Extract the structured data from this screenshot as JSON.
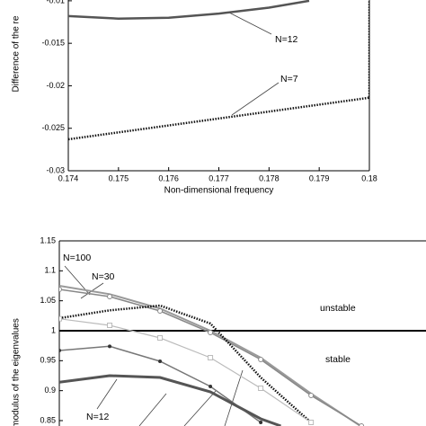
{
  "chart_data": [
    {
      "type": "line",
      "y_label": "Difference of the re",
      "x_label": "Non-dimensional frequency",
      "xlim": [
        0.174,
        0.18
      ],
      "xticks": [
        0.174,
        0.175,
        0.176,
        0.177,
        0.178,
        0.179,
        0.18
      ],
      "ylim": [
        -0.03,
        -0.0098
      ],
      "yticks": [
        -0.03,
        -0.025,
        -0.02,
        -0.015,
        -0.01
      ],
      "annotations": [
        "N=12",
        "N=7"
      ],
      "series": [
        {
          "color": "#555555",
          "width": 2.5,
          "style": "solid",
          "x": [
            0.174,
            0.175,
            0.176,
            0.177,
            0.178,
            0.1788
          ],
          "values": [
            -0.0118,
            -0.0121,
            -0.012,
            -0.0115,
            -0.0108,
            -0.01
          ]
        },
        {
          "color": "#111111",
          "width": 2.5,
          "style": "dotted",
          "x": [
            0.174,
            0.18,
            0.18
          ],
          "values": [
            -0.0263,
            -0.0214,
            -0.0098
          ]
        }
      ]
    },
    {
      "type": "line",
      "y_label": "modulus of the eigenvalues",
      "xlim": [
        0.174,
        0.1813
      ],
      "ylim": [
        0.838,
        1.15
      ],
      "yticks": [
        0.85,
        0.9,
        0.95,
        1,
        1.05,
        1.1,
        1.15
      ],
      "reference_y": 1,
      "annotations": [
        "N=100",
        "N=30",
        "unstable",
        "stable",
        "N=12"
      ],
      "series": [
        {
          "color": "#999999",
          "width": 2,
          "style": "solid",
          "marker": "none",
          "x": [
            0.174,
            0.175,
            0.176,
            0.177,
            0.178,
            0.179,
            0.18
          ],
          "values": [
            1.075,
            1.061,
            1.037,
            1.0,
            0.955,
            0.895,
            0.84
          ]
        },
        {
          "color": "#888888",
          "width": 1.5,
          "style": "solid",
          "marker": "circle",
          "x": [
            0.174,
            0.175,
            0.176,
            0.177,
            0.178,
            0.179,
            0.18
          ],
          "values": [
            1.069,
            1.057,
            1.033,
            0.997,
            0.952,
            0.892,
            0.841
          ]
        },
        {
          "color": "#111111",
          "width": 2.5,
          "style": "dotted",
          "marker": "none",
          "x": [
            0.174,
            0.175,
            0.176,
            0.177,
            0.178,
            0.179
          ],
          "values": [
            1.021,
            1.034,
            1.042,
            1.012,
            0.922,
            0.847
          ]
        },
        {
          "color": "#bbbbbb",
          "width": 1.2,
          "style": "solid",
          "marker": "square",
          "x": [
            0.174,
            0.175,
            0.176,
            0.177,
            0.178,
            0.179
          ],
          "values": [
            1.02,
            1.009,
            0.988,
            0.955,
            0.904,
            0.847
          ]
        },
        {
          "color": "#777777",
          "width": 1.5,
          "style": "solid",
          "marker": "star",
          "x": [
            0.174,
            0.175,
            0.176,
            0.177,
            0.178
          ],
          "values": [
            0.967,
            0.974,
            0.949,
            0.907,
            0.847
          ]
        },
        {
          "color": "#555555",
          "width": 3,
          "style": "solid",
          "marker": "none",
          "x": [
            0.174,
            0.175,
            0.176,
            0.177,
            0.178,
            0.1784
          ],
          "values": [
            0.914,
            0.925,
            0.922,
            0.898,
            0.853,
            0.841
          ]
        }
      ]
    }
  ]
}
